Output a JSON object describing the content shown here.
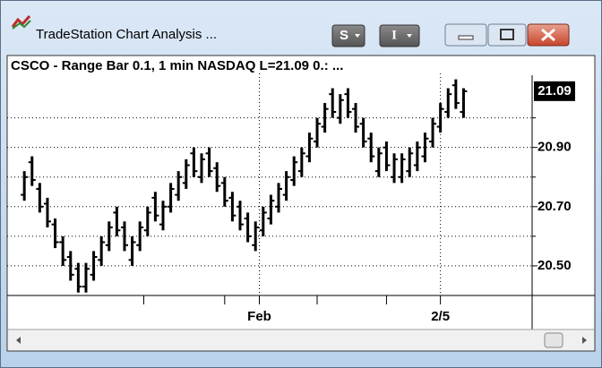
{
  "window": {
    "title": "TradeStation Chart Analysis ...",
    "buttons": [
      "S",
      "I"
    ]
  },
  "chart_data": {
    "type": "ohlc",
    "title": "CSCO - Range Bar 0.1, 1 min  NASDAQ  L=21.09  0.: ...",
    "color": "#000000",
    "open": [
      20.74,
      20.85,
      20.76,
      20.71,
      20.64,
      20.58,
      20.53,
      20.49,
      20.43,
      20.47,
      20.52,
      20.57,
      20.68,
      20.63,
      20.52,
      20.57,
      20.62,
      20.73,
      20.64,
      20.7,
      20.74,
      20.78,
      20.88,
      20.8,
      20.88,
      20.83,
      20.78,
      20.73,
      20.7,
      20.66,
      20.57,
      20.62,
      20.66,
      20.7,
      20.74,
      20.79,
      20.82,
      20.87,
      20.92,
      20.97,
      21.08,
      21.0,
      21.08,
      21.03,
      20.98,
      20.93,
      20.82,
      20.9,
      20.8,
      20.8,
      20.82,
      20.84,
      20.87,
      20.92,
      20.97,
      21.02,
      21.11,
      21.02
    ],
    "high": [
      20.82,
      20.87,
      20.78,
      20.73,
      20.66,
      20.6,
      20.55,
      20.51,
      20.51,
      20.55,
      20.6,
      20.65,
      20.7,
      20.65,
      20.6,
      20.65,
      20.7,
      20.75,
      20.72,
      20.78,
      20.82,
      20.86,
      20.9,
      20.88,
      20.9,
      20.85,
      20.8,
      20.75,
      20.72,
      20.68,
      20.65,
      20.7,
      20.74,
      20.78,
      20.82,
      20.87,
      20.9,
      20.95,
      21.0,
      21.05,
      21.1,
      21.08,
      21.1,
      21.05,
      21.0,
      20.95,
      20.9,
      20.92,
      20.88,
      20.88,
      20.9,
      20.92,
      20.95,
      21.0,
      21.05,
      21.1,
      21.13,
      21.1
    ],
    "low": [
      20.72,
      20.77,
      20.68,
      20.63,
      20.56,
      20.5,
      20.45,
      20.41,
      20.41,
      20.45,
      20.5,
      20.55,
      20.6,
      20.55,
      20.5,
      20.55,
      20.6,
      20.65,
      20.62,
      20.68,
      20.72,
      20.76,
      20.8,
      20.78,
      20.8,
      20.75,
      20.7,
      20.65,
      20.62,
      20.58,
      20.55,
      20.6,
      20.64,
      20.68,
      20.72,
      20.77,
      20.8,
      20.85,
      20.9,
      20.95,
      21.0,
      20.98,
      21.0,
      20.95,
      20.9,
      20.85,
      20.8,
      20.82,
      20.78,
      20.78,
      20.8,
      20.82,
      20.85,
      20.9,
      20.95,
      21.0,
      21.03,
      21.0
    ],
    "close": [
      20.8,
      20.79,
      20.7,
      20.65,
      20.58,
      20.52,
      20.47,
      20.43,
      20.49,
      20.53,
      20.58,
      20.63,
      20.62,
      20.57,
      20.58,
      20.63,
      20.68,
      20.67,
      20.7,
      20.76,
      20.8,
      20.84,
      20.82,
      20.86,
      20.82,
      20.77,
      20.72,
      20.67,
      20.64,
      20.6,
      20.63,
      20.68,
      20.72,
      20.76,
      20.8,
      20.85,
      20.88,
      20.93,
      20.98,
      21.03,
      21.02,
      21.06,
      21.02,
      20.97,
      20.92,
      20.87,
      20.88,
      20.84,
      20.86,
      20.86,
      20.88,
      20.9,
      20.93,
      20.98,
      21.03,
      21.08,
      21.05,
      21.09
    ],
    "last_price": 21.09,
    "xlim": [
      -0.6,
      65.9
    ],
    "xticks": [
      {
        "value": 30.5,
        "label": "Feb"
      },
      {
        "value": 54,
        "label": "2/5"
      }
    ],
    "xminor": [
      15.5,
      26,
      38,
      47
    ],
    "ylim": [
      20.4,
      21.15
    ],
    "yticks": [
      {
        "value": 20.5,
        "label": "20.50"
      },
      {
        "value": 20.7,
        "label": "20.70"
      },
      {
        "value": 20.9,
        "label": "20.90"
      }
    ],
    "yminor": [
      20.6,
      20.8,
      21.0
    ],
    "grid": true
  }
}
